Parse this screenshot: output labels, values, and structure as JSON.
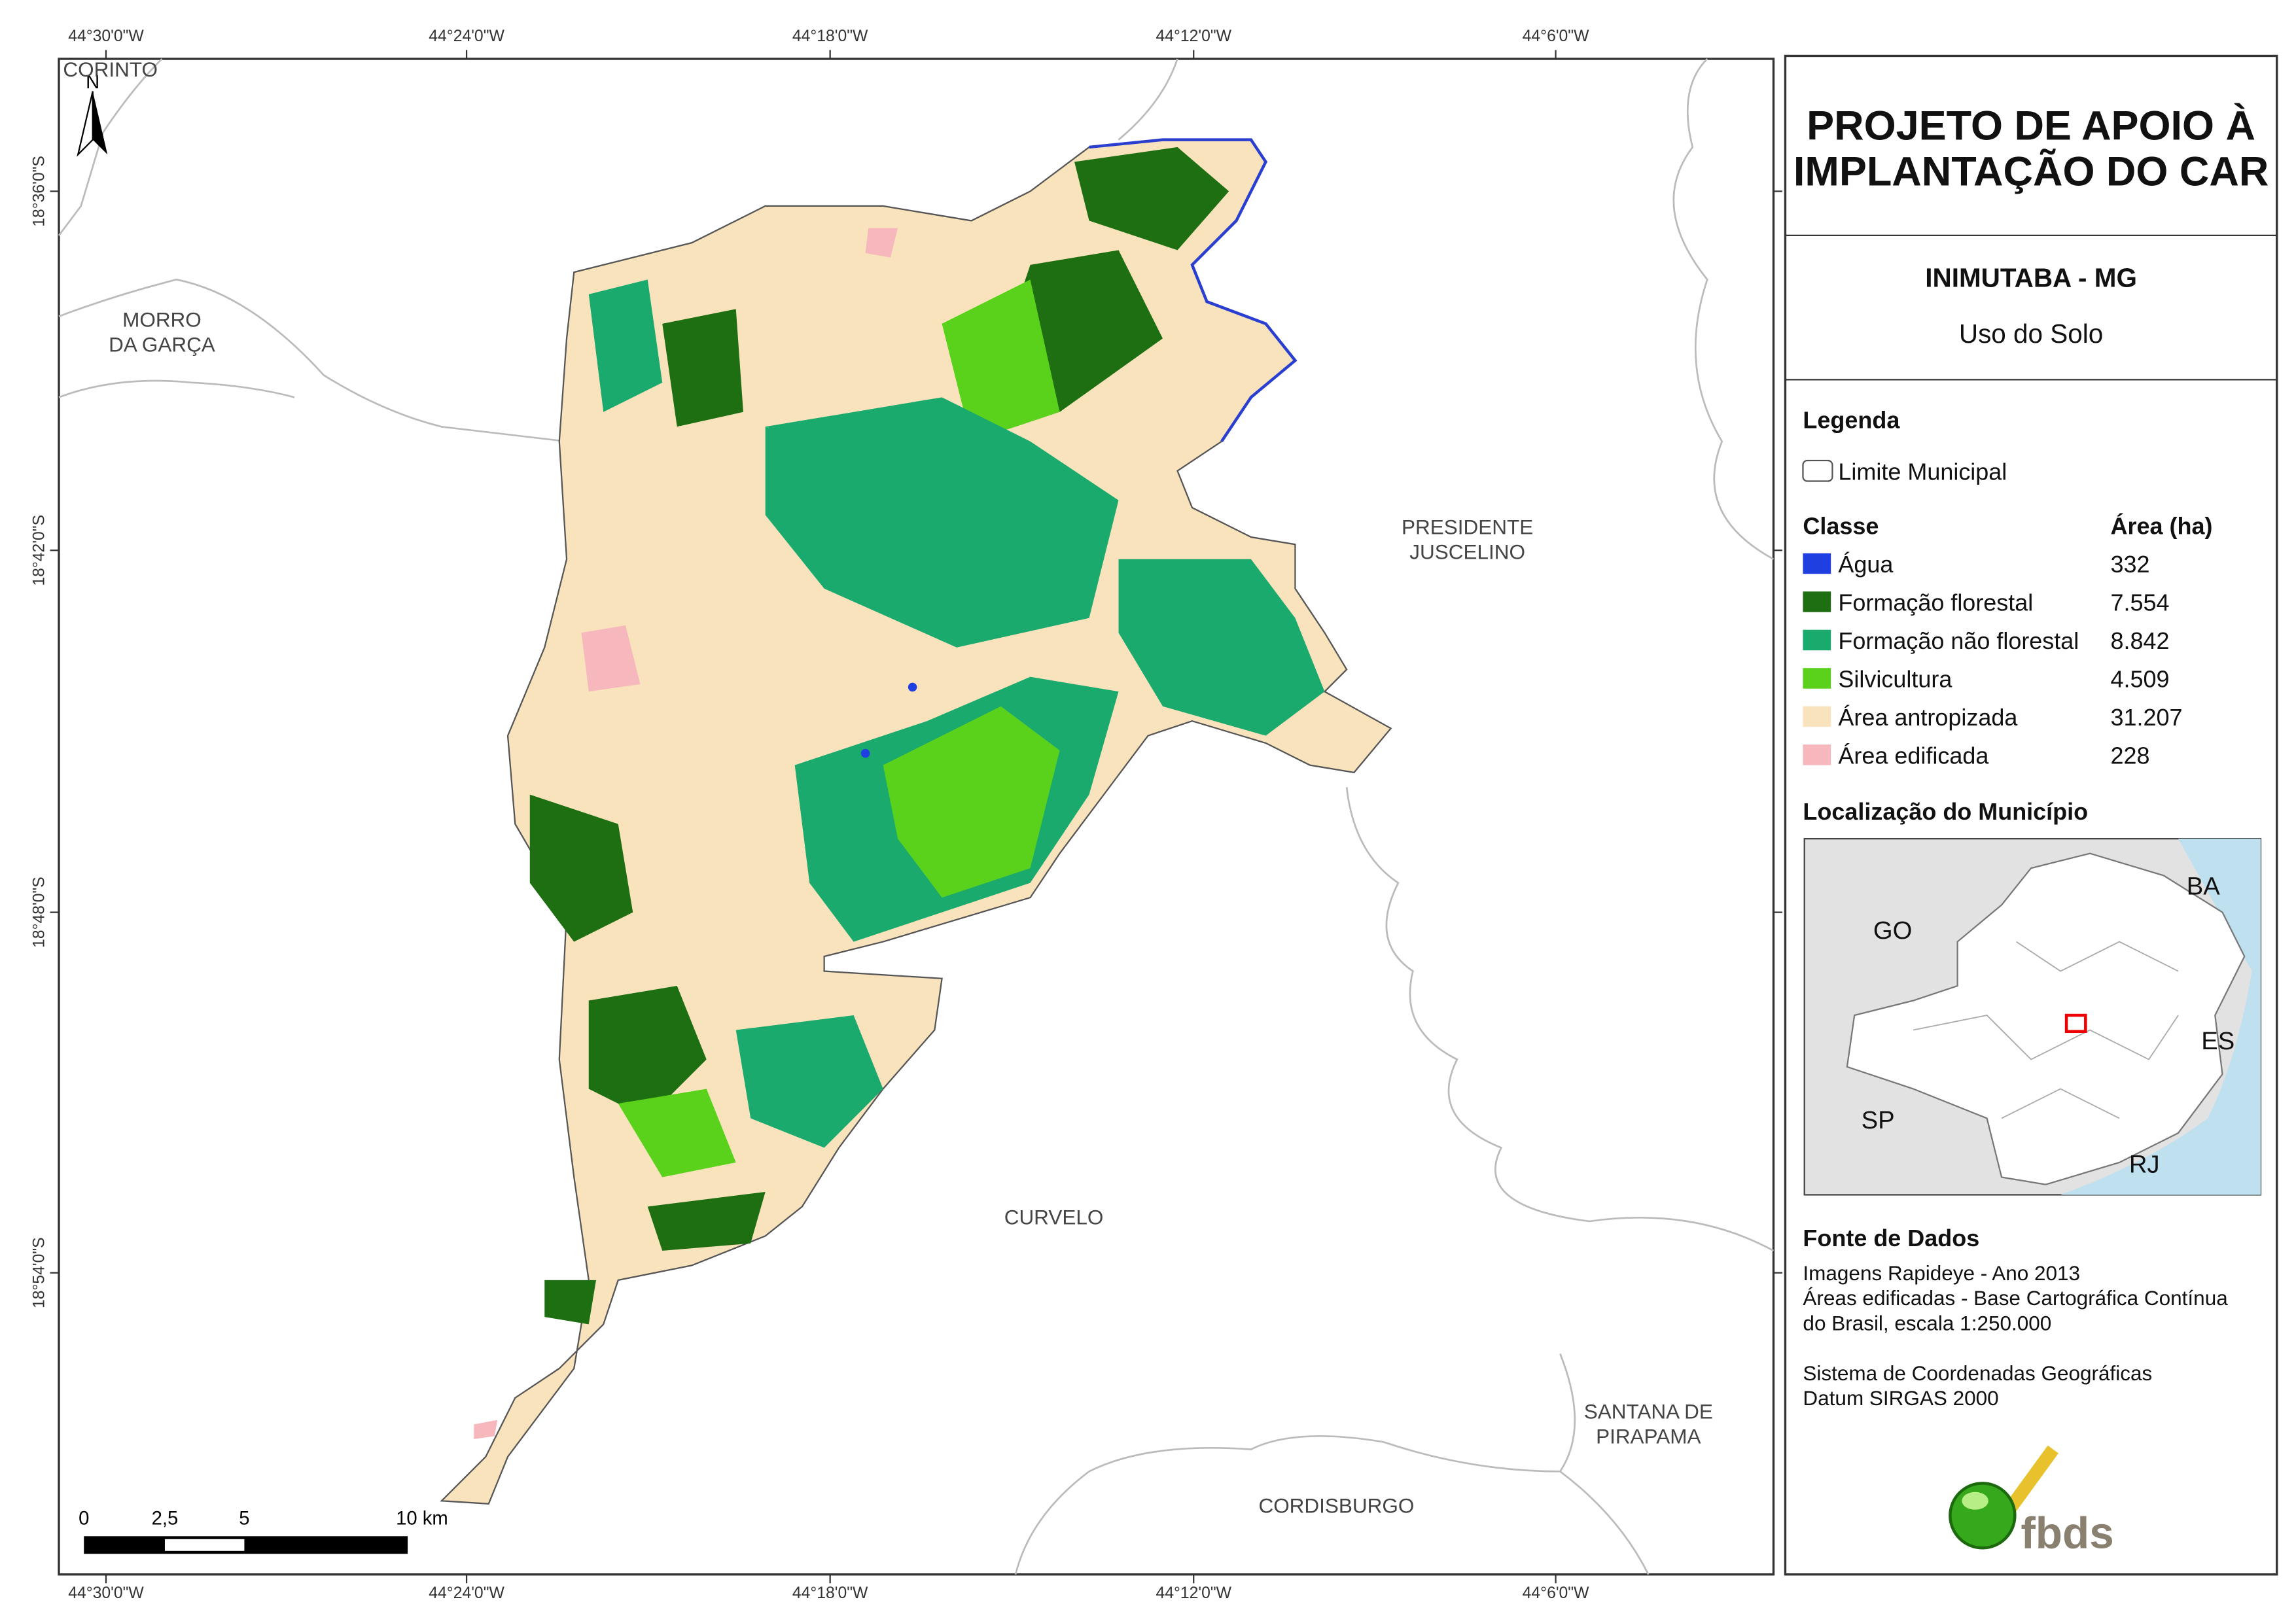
{
  "map": {
    "north": "N",
    "coordinates": {
      "longitude": [
        "44°30'0\"W",
        "44°24'0\"W",
        "44°18'0\"W",
        "44°12'0\"W",
        "44°6'0\"W"
      ],
      "latitude": [
        "18°36'0\"S",
        "18°42'0\"S",
        "18°48'0\"S",
        "18°54'0\"S"
      ]
    },
    "places": [
      {
        "lines": [
          "CORINTO"
        ]
      },
      {
        "lines": [
          "MORRO",
          "DA GARÇA"
        ]
      },
      {
        "lines": [
          "PRESIDENTE",
          "JUSCELINO"
        ]
      },
      {
        "lines": [
          "CURVELO"
        ]
      },
      {
        "lines": [
          "SANTANA DE",
          "PIRAPAMA"
        ]
      },
      {
        "lines": [
          "CORDISBURGO"
        ]
      }
    ],
    "scale_bar": [
      "0",
      "2,5",
      "5",
      "10 km"
    ]
  },
  "panel": {
    "title": [
      "PROJETO DE APOIO À",
      "IMPLANTAÇÃO DO CAR"
    ],
    "municipality": "INIMUTABA - MG",
    "subtitle": "Uso do Solo",
    "legend": {
      "heading": "Legenda",
      "boundary": "Limite Municipal",
      "class_header": "Classe",
      "area_header": "Área (ha)",
      "classes": [
        {
          "name": "Água",
          "area": "332",
          "color": "#1f3fe0"
        },
        {
          "name": "Formação florestal",
          "area": "7.554",
          "color": "#1e6e12"
        },
        {
          "name": "Formação não florestal",
          "area": "8.842",
          "color": "#1aaa6e"
        },
        {
          "name": "Silvicultura",
          "area": "4.509",
          "color": "#5ad21c"
        },
        {
          "name": "Área antropizada",
          "area": "31.207",
          "color": "#f8e3bd"
        },
        {
          "name": "Área edificada",
          "area": "228",
          "color": "#f6b8bc"
        }
      ]
    },
    "location": {
      "heading": "Localização do Município",
      "states": [
        "GO",
        "BA",
        "ES",
        "SP",
        "RJ"
      ]
    },
    "sources": {
      "heading": "Fonte de Dados",
      "lines": [
        "Imagens Rapideye - Ano 2013",
        "Áreas edificadas - Base Cartográfica Contínua",
        "do Brasil, escala 1:250.000",
        "",
        "Sistema de Coordenadas Geográficas",
        "Datum SIRGAS 2000"
      ]
    },
    "logo": "fbds"
  }
}
